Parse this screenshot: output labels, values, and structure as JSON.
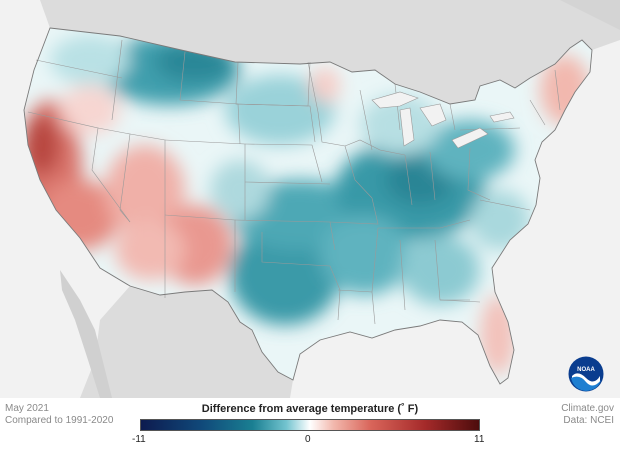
{
  "map": {
    "period": "May 2021",
    "baseline": "Compared to 1991-2020",
    "legend_title": "Difference from average temperature  (˚ F)",
    "scale_min": "-11",
    "scale_mid": "0",
    "scale_max": "11",
    "credit": "Climate.gov",
    "source": "Data: NCEI",
    "logo_text": "NOAA",
    "colors": {
      "cold_extreme": "#0d1b4f",
      "cold": "#1a7f92",
      "cool": "#73c4cf",
      "neutral": "#ffffff",
      "warm": "#d9655a",
      "hot_extreme": "#4d0c0c",
      "land_outside": "#dcdcdc",
      "ocean": "#f2f2f2"
    },
    "regions": [
      {
        "name": "Northern Rockies / Montana",
        "anomaly": "cooler than average"
      },
      {
        "name": "California / Nevada",
        "anomaly": "warmer than average"
      },
      {
        "name": "Southwest",
        "anomaly": "warmer than average"
      },
      {
        "name": "Texas / Southern Plains",
        "anomaly": "cooler than average"
      },
      {
        "name": "Ohio Valley / Mid-Atlantic",
        "anomaly": "cooler than average"
      },
      {
        "name": "New England",
        "anomaly": "warmer than average"
      },
      {
        "name": "Florida",
        "anomaly": "warmer than average"
      }
    ]
  }
}
